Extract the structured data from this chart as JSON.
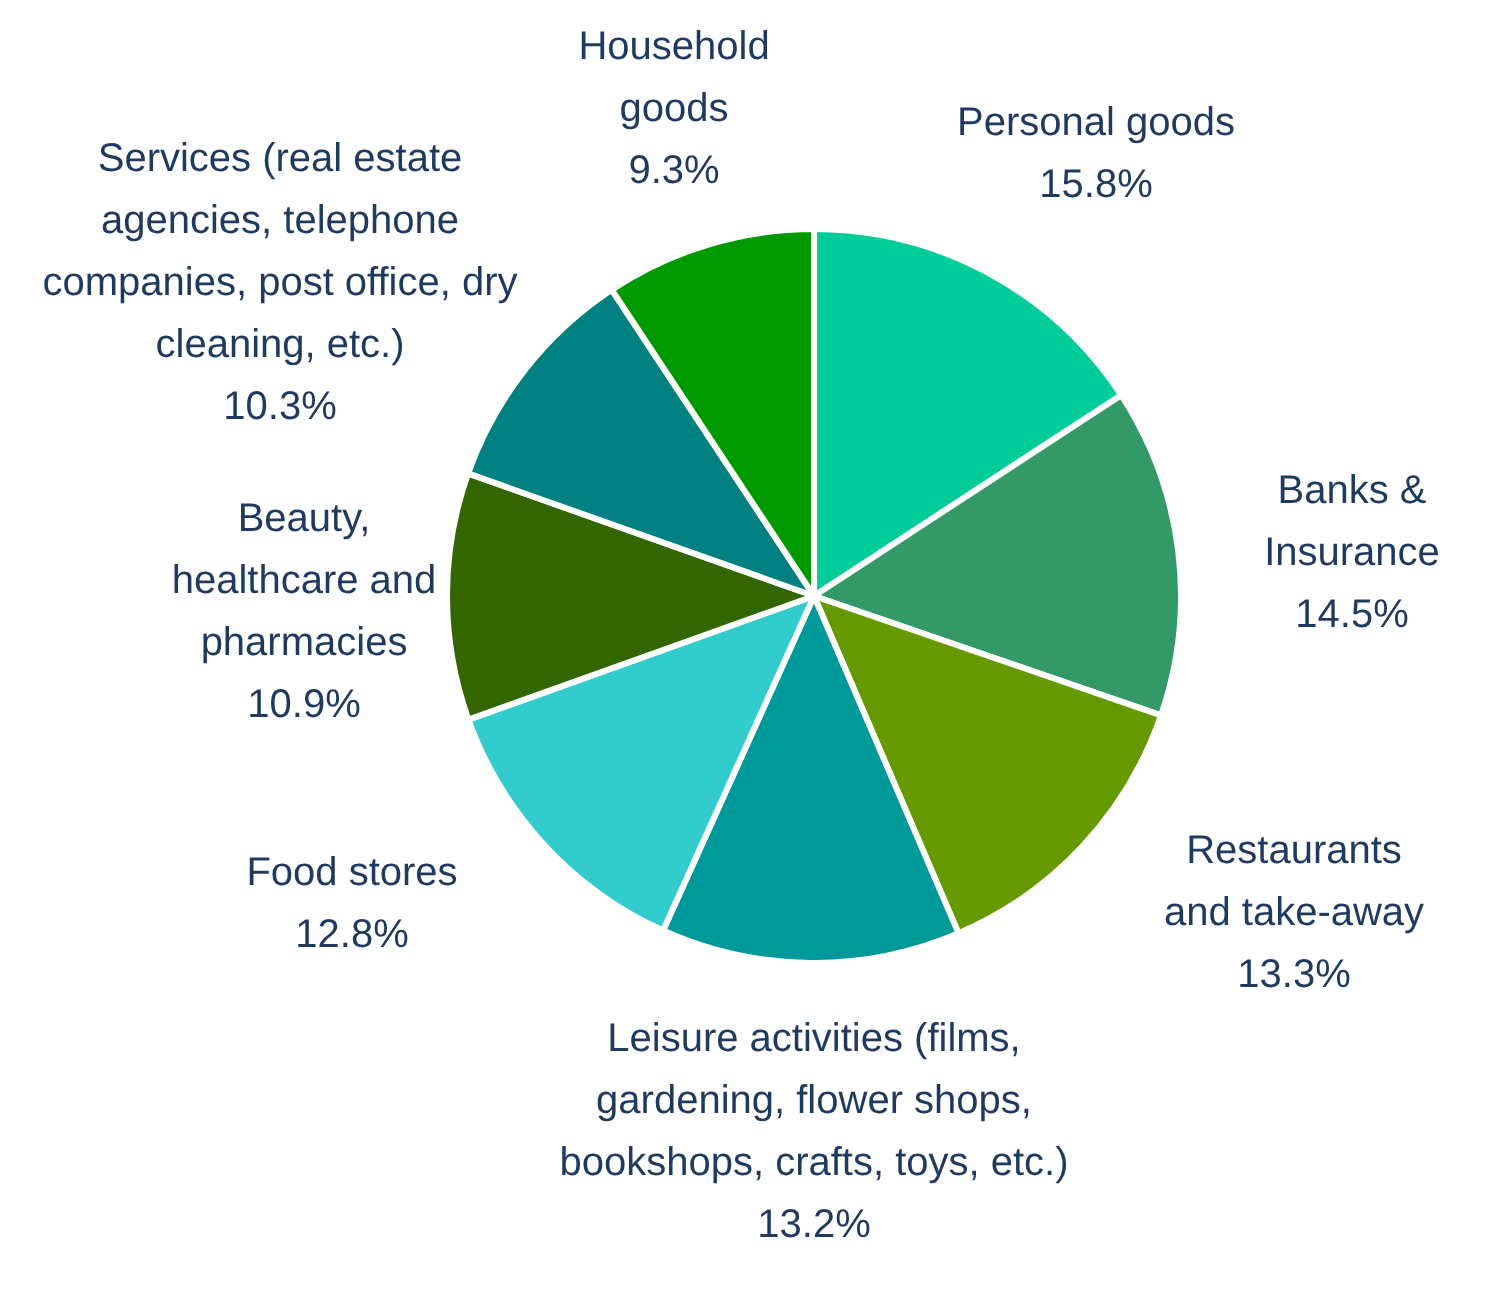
{
  "chart_data": {
    "type": "pie",
    "categories": [
      "Personal goods",
      "Banks & Insurance",
      "Restaurants and take-away",
      "Leisure activities (films, gardening, flower shops, bookshops, crafts, toys, etc.)",
      "Food stores",
      "Beauty, healthcare and pharmacies",
      "Services (real estate agencies, telephone companies, post office, dry cleaning, etc.)",
      "Household goods"
    ],
    "values": [
      15.8,
      14.5,
      13.3,
      13.2,
      12.8,
      10.9,
      10.3,
      9.3
    ],
    "value_labels": [
      "15.8%",
      "14.5%",
      "13.3%",
      "13.2%",
      "12.8%",
      "10.9%",
      "10.3%",
      "9.3%"
    ],
    "colors": [
      "#00cc99",
      "#339966",
      "#669900",
      "#009999",
      "#33cccc",
      "#336600",
      "#008080",
      "#009900"
    ],
    "legend": false
  }
}
